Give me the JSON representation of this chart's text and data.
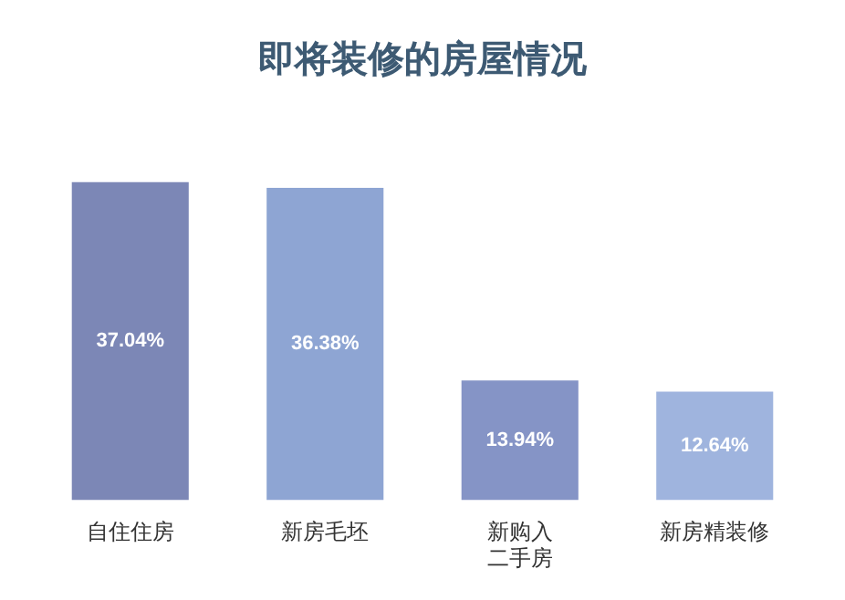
{
  "chart_data": {
    "type": "bar",
    "title": "即将装修的房屋情况",
    "categories": [
      "自住住房",
      "新房毛坯",
      "新购入二手房",
      "新房精装修"
    ],
    "values": [
      37.04,
      36.38,
      13.94,
      12.64
    ],
    "value_labels": [
      "37.04%",
      "36.38%",
      "13.94%",
      "12.64%"
    ],
    "colors": [
      "#7c87b6",
      "#8ea5d3",
      "#8594c6",
      "#9fb4de"
    ],
    "grid": false,
    "legend": false
  }
}
